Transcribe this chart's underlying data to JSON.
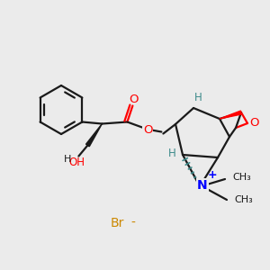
{
  "bg_color": "#ebebeb",
  "bond_color": "#1a1a1a",
  "N_color": "#0000ff",
  "O_color": "#ff0000",
  "H_color": "#3d8b8b",
  "Br_color": "#cc8800",
  "figsize": [
    3.0,
    3.0
  ],
  "dpi": 100,
  "xlim": [
    0,
    300
  ],
  "ylim": [
    0,
    300
  ]
}
